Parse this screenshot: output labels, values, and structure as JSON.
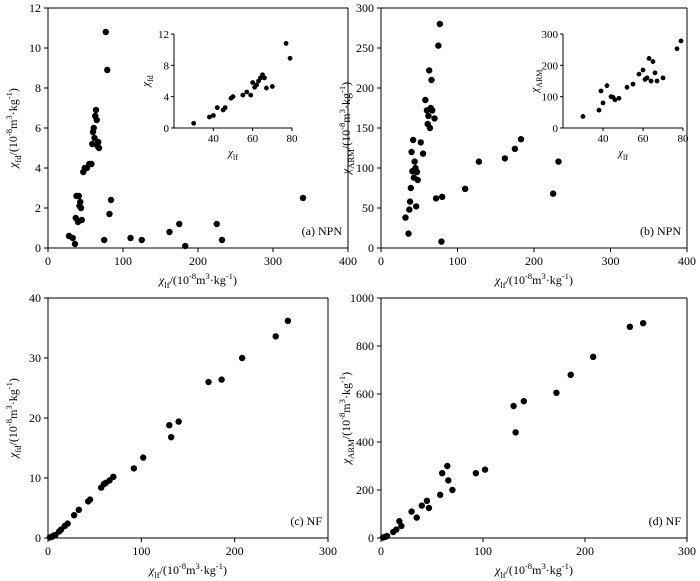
{
  "chart_data": [
    {
      "id": "a",
      "type": "scatter",
      "panel_label": "(a) NPN",
      "xlabel": "χlf/(10-8m3·kg-1)",
      "ylabel": "χfd/(10-8m3·kg-1)",
      "xlim": [
        0,
        400
      ],
      "ylim": [
        0,
        12
      ],
      "xticks": [
        0,
        100,
        200,
        300,
        400
      ],
      "yticks": [
        0,
        2,
        4,
        6,
        8,
        10,
        12
      ],
      "points": [
        [
          28,
          0.6
        ],
        [
          33,
          0.5
        ],
        [
          36,
          0.2
        ],
        [
          37,
          1.5
        ],
        [
          38,
          2.6
        ],
        [
          40,
          1.3
        ],
        [
          41,
          2.6
        ],
        [
          42,
          2.1
        ],
        [
          43,
          2.3
        ],
        [
          44,
          2.0
        ],
        [
          45,
          1.4
        ],
        [
          47,
          3.8
        ],
        [
          49,
          4.0
        ],
        [
          52,
          4.0
        ],
        [
          55,
          4.2
        ],
        [
          58,
          4.2
        ],
        [
          59,
          5.2
        ],
        [
          60,
          5.8
        ],
        [
          61,
          6.0
        ],
        [
          62,
          5.5
        ],
        [
          63,
          6.6
        ],
        [
          64,
          6.9
        ],
        [
          65,
          6.4
        ],
        [
          66,
          5.1
        ],
        [
          67,
          5.3
        ],
        [
          68,
          5.0
        ],
        [
          75,
          0.4
        ],
        [
          77,
          10.8
        ],
        [
          79,
          8.9
        ],
        [
          82,
          1.7
        ],
        [
          84,
          2.4
        ],
        [
          110,
          0.5
        ],
        [
          125,
          0.4
        ],
        [
          162,
          0.8
        ],
        [
          175,
          1.2
        ],
        [
          183,
          0.1
        ],
        [
          225,
          1.2
        ],
        [
          232,
          0.4
        ],
        [
          340,
          2.5
        ]
      ],
      "inset": {
        "xlabel": "χlf",
        "ylabel": "χfd",
        "xlim": [
          20,
          80
        ],
        "ylim": [
          0,
          12
        ],
        "xticks": [
          40,
          60,
          80
        ],
        "yticks": [
          0,
          4,
          8,
          12
        ],
        "points": [
          [
            30,
            0.6
          ],
          [
            38,
            1.4
          ],
          [
            40,
            1.6
          ],
          [
            42,
            2.6
          ],
          [
            45,
            2.3
          ],
          [
            46,
            2.6
          ],
          [
            49,
            3.8
          ],
          [
            50,
            4.0
          ],
          [
            55,
            4.2
          ],
          [
            57,
            4.6
          ],
          [
            59,
            4.2
          ],
          [
            60,
            5.8
          ],
          [
            61,
            5.2
          ],
          [
            62,
            5.5
          ],
          [
            63,
            6.0
          ],
          [
            64,
            6.4
          ],
          [
            65,
            6.8
          ],
          [
            66,
            6.4
          ],
          [
            67,
            5.1
          ],
          [
            70,
            5.3
          ],
          [
            77,
            10.8
          ],
          [
            79,
            8.9
          ]
        ]
      }
    },
    {
      "id": "b",
      "type": "scatter",
      "panel_label": "(b) NPN",
      "xlabel": "χlf/(10-8m3·kg-1)",
      "ylabel": "χARM/(10-8m3·kg-1)",
      "xlim": [
        0,
        400
      ],
      "ylim": [
        0,
        300
      ],
      "xticks": [
        0,
        100,
        200,
        300,
        400
      ],
      "yticks": [
        0,
        50,
        100,
        150,
        200,
        250,
        300
      ],
      "points": [
        [
          32,
          38
        ],
        [
          36,
          18
        ],
        [
          37,
          48
        ],
        [
          38,
          58
        ],
        [
          39,
          75
        ],
        [
          40,
          120
        ],
        [
          41,
          96
        ],
        [
          42,
          135
        ],
        [
          43,
          88
        ],
        [
          44,
          108
        ],
        [
          45,
          100
        ],
        [
          46,
          52
        ],
        [
          47,
          95
        ],
        [
          48,
          85
        ],
        [
          52,
          132
        ],
        [
          55,
          118
        ],
        [
          58,
          185
        ],
        [
          60,
          172
        ],
        [
          61,
          155
        ],
        [
          62,
          165
        ],
        [
          63,
          222
        ],
        [
          64,
          150
        ],
        [
          65,
          175
        ],
        [
          66,
          210
        ],
        [
          67,
          172
        ],
        [
          70,
          162
        ],
        [
          72,
          62
        ],
        [
          75,
          253
        ],
        [
          77,
          280
        ],
        [
          79,
          8
        ],
        [
          80,
          64
        ],
        [
          110,
          74
        ],
        [
          128,
          108
        ],
        [
          162,
          112
        ],
        [
          175,
          124
        ],
        [
          183,
          136
        ],
        [
          225,
          68
        ],
        [
          232,
          108
        ]
      ],
      "inset": {
        "xlabel": "χlf",
        "ylabel": "χARM",
        "xlim": [
          20,
          80
        ],
        "ylim": [
          0,
          300
        ],
        "xticks": [
          40,
          60,
          80
        ],
        "yticks": [
          0,
          100,
          200,
          300
        ],
        "points": [
          [
            30,
            37
          ],
          [
            38,
            57
          ],
          [
            39,
            118
          ],
          [
            40,
            80
          ],
          [
            42,
            135
          ],
          [
            44,
            100
          ],
          [
            45,
            98
          ],
          [
            46,
            90
          ],
          [
            48,
            95
          ],
          [
            52,
            130
          ],
          [
            55,
            140
          ],
          [
            58,
            172
          ],
          [
            60,
            185
          ],
          [
            61,
            155
          ],
          [
            62,
            160
          ],
          [
            63,
            222
          ],
          [
            64,
            150
          ],
          [
            65,
            212
          ],
          [
            66,
            176
          ],
          [
            67,
            150
          ],
          [
            70,
            160
          ],
          [
            77,
            253
          ],
          [
            79,
            278
          ]
        ]
      }
    },
    {
      "id": "c",
      "type": "scatter",
      "panel_label": "(c) NF",
      "xlabel": "χlf/(10-8m3·kg-1)",
      "ylabel": "χfd/(10-8m3·kg-1)",
      "xlim": [
        0,
        300
      ],
      "ylim": [
        0,
        40
      ],
      "xticks": [
        0,
        100,
        200,
        300
      ],
      "yticks": [
        0,
        10,
        20,
        30,
        40
      ],
      "points": [
        [
          2,
          0.1
        ],
        [
          4,
          0.2
        ],
        [
          6,
          0.4
        ],
        [
          8,
          0.5
        ],
        [
          12,
          1.1
        ],
        [
          14,
          1.4
        ],
        [
          18,
          2.0
        ],
        [
          21,
          2.4
        ],
        [
          28,
          3.8
        ],
        [
          33,
          4.7
        ],
        [
          43,
          6.1
        ],
        [
          45,
          6.4
        ],
        [
          57,
          8.4
        ],
        [
          60,
          9.0
        ],
        [
          62,
          9.2
        ],
        [
          66,
          9.6
        ],
        [
          70,
          10.2
        ],
        [
          92,
          11.6
        ],
        [
          102,
          13.4
        ],
        [
          130,
          18.8
        ],
        [
          132,
          16.8
        ],
        [
          140,
          19.4
        ],
        [
          172,
          26.0
        ],
        [
          186,
          26.4
        ],
        [
          208,
          30.0
        ],
        [
          244,
          33.6
        ],
        [
          257,
          36.2
        ]
      ]
    },
    {
      "id": "d",
      "type": "scatter",
      "panel_label": "(d) NF",
      "xlabel": "χlf/(10-8m3·kg-1)",
      "ylabel": "χARM/(10-8m3·kg-1)",
      "xlim": [
        0,
        300
      ],
      "ylim": [
        0,
        1000
      ],
      "xticks": [
        0,
        100,
        200,
        300
      ],
      "yticks": [
        0,
        200,
        400,
        600,
        800,
        1000
      ],
      "points": [
        [
          2,
          2
        ],
        [
          4,
          5
        ],
        [
          6,
          8
        ],
        [
          12,
          25
        ],
        [
          15,
          35
        ],
        [
          18,
          70
        ],
        [
          20,
          50
        ],
        [
          30,
          110
        ],
        [
          35,
          85
        ],
        [
          40,
          135
        ],
        [
          45,
          155
        ],
        [
          47,
          125
        ],
        [
          58,
          180
        ],
        [
          60,
          270
        ],
        [
          65,
          300
        ],
        [
          66,
          240
        ],
        [
          70,
          200
        ],
        [
          93,
          270
        ],
        [
          102,
          285
        ],
        [
          130,
          550
        ],
        [
          132,
          440
        ],
        [
          140,
          570
        ],
        [
          172,
          605
        ],
        [
          186,
          680
        ],
        [
          208,
          755
        ],
        [
          244,
          880
        ],
        [
          257,
          895
        ]
      ]
    }
  ]
}
